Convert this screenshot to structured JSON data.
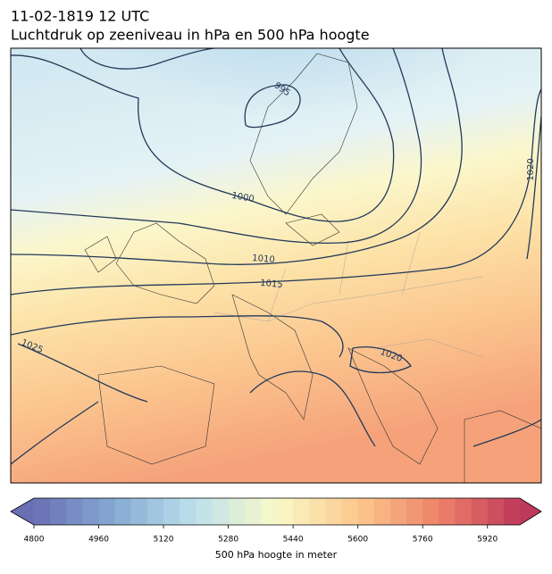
{
  "header": {
    "date": "11-02-1819 12 UTC",
    "title": "Luchtdruk op zeeniveau in hPa en 500 hPa hoogte"
  },
  "map": {
    "contour_labels": [
      "995",
      "1000",
      "1010",
      "1015",
      "1020",
      "1020",
      "1025"
    ]
  },
  "colorbar": {
    "range": [
      4800,
      6000
    ],
    "ticks": [
      4800,
      4960,
      5120,
      5280,
      5440,
      5600,
      5760,
      5920
    ],
    "label": "500 hPa hoogte in meter"
  }
}
